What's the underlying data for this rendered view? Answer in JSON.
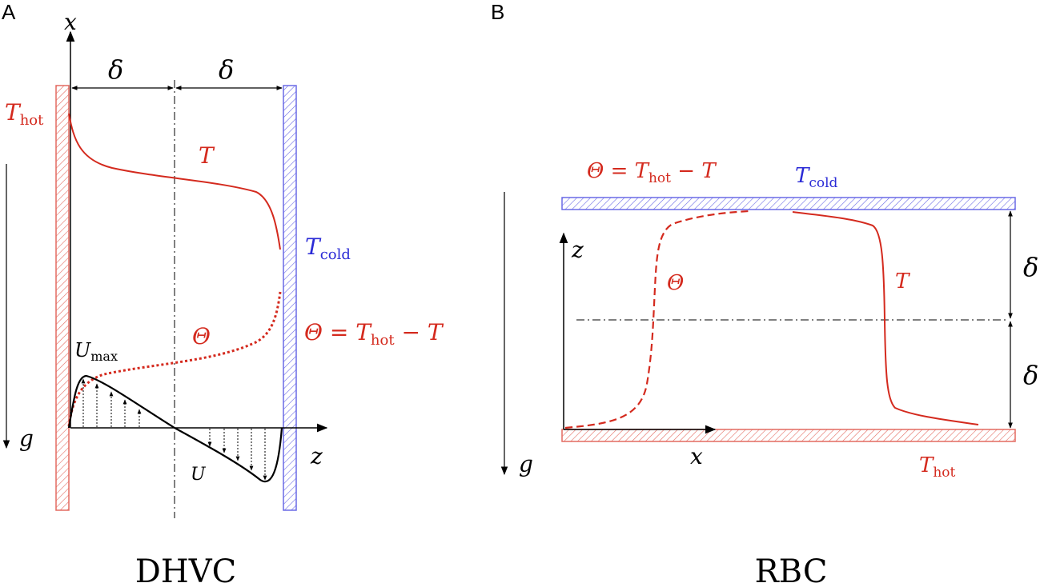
{
  "panels": [
    {
      "label": "A",
      "caption": "DHVC",
      "axes": {
        "vertical": "x",
        "horizontal": "z",
        "gravity": "g"
      },
      "widths": {
        "left": "δ",
        "right": "δ"
      },
      "hot_wall": {
        "symbol": "T",
        "sub": "hot"
      },
      "cold_wall": {
        "symbol": "T",
        "sub": "cold"
      },
      "temperature_curve": "T",
      "theta_curve": "Θ",
      "theta_def": {
        "lhs": "Θ = T",
        "sub": "hot",
        "rhs": " − T"
      },
      "velocity_curve": "U",
      "velocity_max": {
        "symbol": "U",
        "sub": "max"
      }
    },
    {
      "label": "B",
      "caption": "RBC",
      "axes": {
        "vertical": "z",
        "horizontal": "x",
        "gravity": "g"
      },
      "widths": {
        "upper": "δ",
        "lower": "δ"
      },
      "hot_wall": {
        "symbol": "T",
        "sub": "hot"
      },
      "cold_wall": {
        "symbol": "T",
        "sub": "cold"
      },
      "temperature_curve": "T",
      "theta_curve": "Θ",
      "theta_def": {
        "lhs": "Θ = T",
        "sub": "hot",
        "rhs": " − T"
      }
    }
  ],
  "colors": {
    "hot": "#d42a1e",
    "cold": "#2b2bd6",
    "ink": "#000000"
  }
}
